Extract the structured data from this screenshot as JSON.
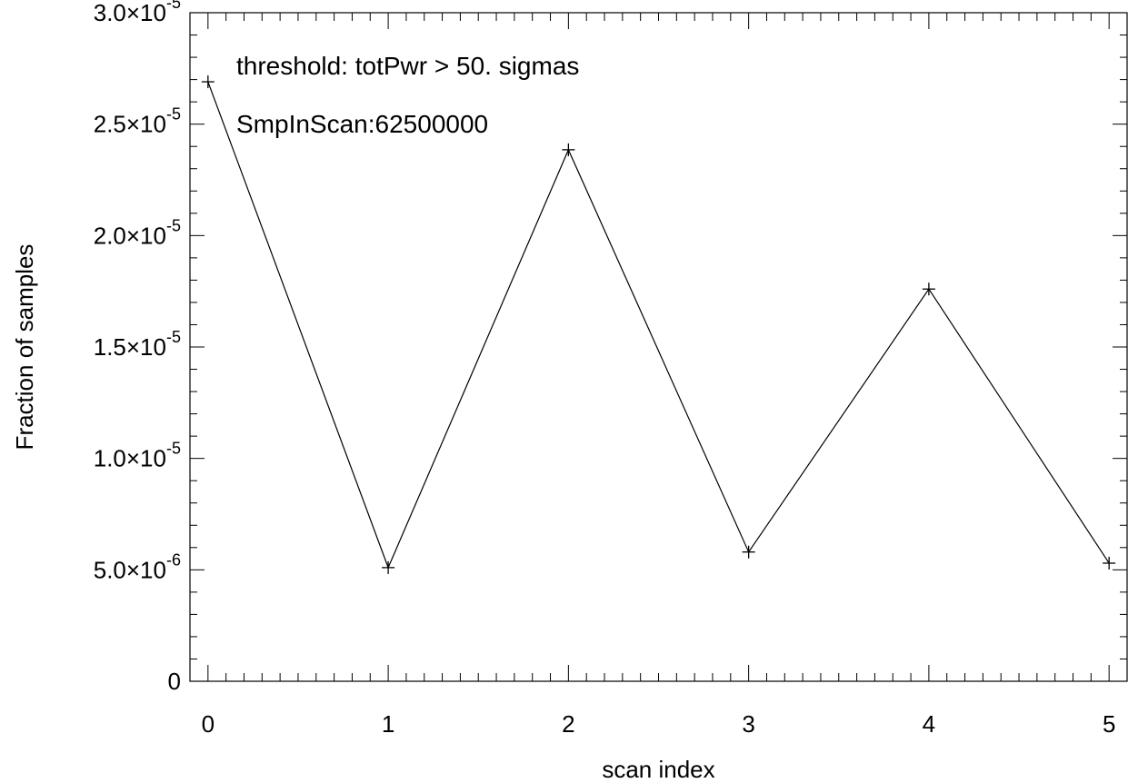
{
  "chart_data": {
    "type": "line",
    "title": "",
    "xlabel": "scan index",
    "ylabel": "Fraction of samples",
    "x": [
      0,
      1,
      2,
      3,
      4,
      5
    ],
    "xlim": [
      -0.1,
      5.1
    ],
    "ylim": [
      0,
      3e-05
    ],
    "x_tick_labels": [
      "0",
      "1",
      "2",
      "3",
      "4",
      "5"
    ],
    "y_ticks": [
      {
        "value": 0,
        "mantissa": "0",
        "exponent": ""
      },
      {
        "value": 5e-06,
        "mantissa": "5.0×10",
        "exponent": "-6"
      },
      {
        "value": 1e-05,
        "mantissa": "1.0×10",
        "exponent": "-5"
      },
      {
        "value": 1.5e-05,
        "mantissa": "1.5×10",
        "exponent": "-5"
      },
      {
        "value": 2e-05,
        "mantissa": "2.0×10",
        "exponent": "-5"
      },
      {
        "value": 2.5e-05,
        "mantissa": "2.5×10",
        "exponent": "-5"
      },
      {
        "value": 3e-05,
        "mantissa": "3.0×10",
        "exponent": "-5"
      }
    ],
    "series": [
      {
        "values": [
          2.69e-05,
          5.1e-06,
          2.385e-05,
          5.8e-06,
          1.76e-05,
          5.3e-06
        ],
        "marker": "plus",
        "color": "#000000"
      }
    ],
    "annotations": [
      "threshold: totPwr >  50. sigmas",
      "SmpInScan:62500000"
    ],
    "grid": false,
    "legend": "none"
  }
}
